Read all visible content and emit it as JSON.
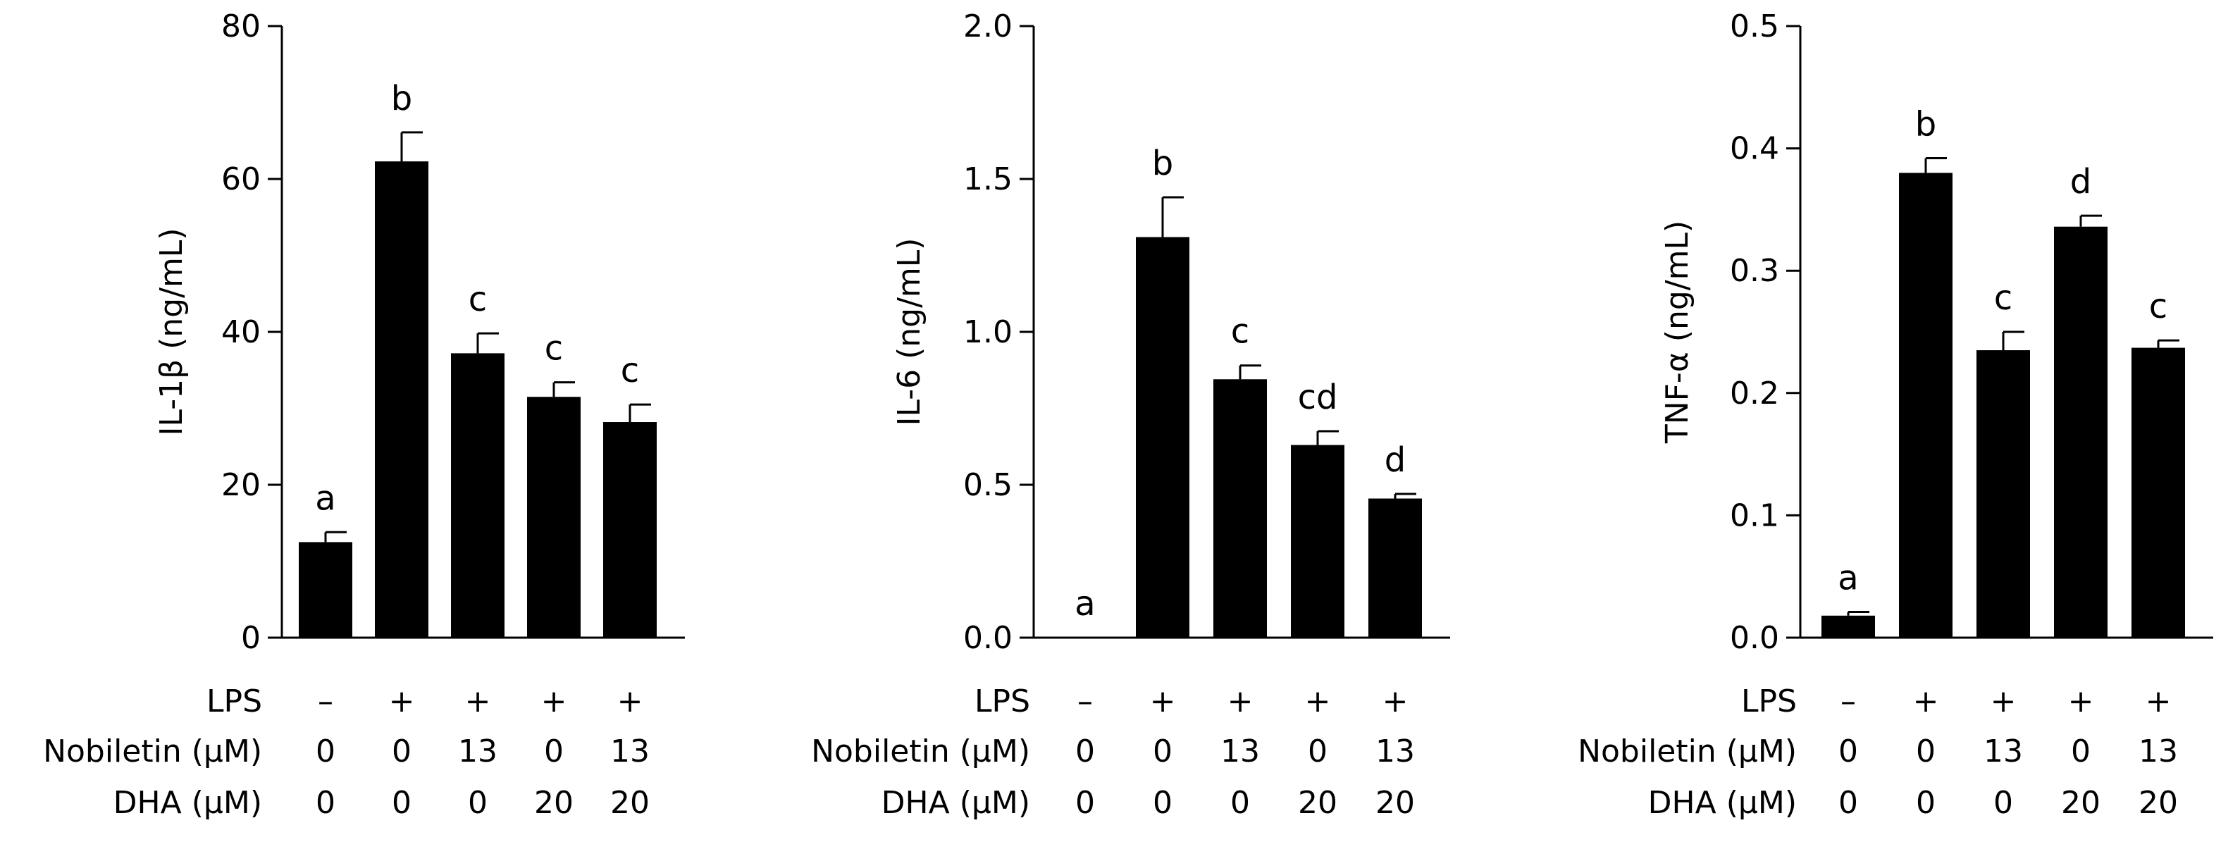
{
  "conditions": {
    "labels": [
      "LPS",
      "Nobiletin (μM)",
      "DHA (μM)"
    ],
    "rows": [
      [
        "–",
        "+",
        "+",
        "+",
        "+"
      ],
      [
        "0",
        "0",
        "13",
        "0",
        "13"
      ],
      [
        "0",
        "0",
        "0",
        "20",
        "20"
      ]
    ]
  },
  "chart_data": [
    {
      "type": "bar",
      "ylabel": "IL-1β (ng/mL)",
      "ylim": [
        0,
        80
      ],
      "yticks": [
        0,
        20,
        40,
        60,
        80
      ],
      "tick_labels": [
        "0",
        "20",
        "40",
        "60",
        "80"
      ],
      "groups": [
        "1",
        "2",
        "3",
        "4",
        "5"
      ],
      "values": [
        12.5,
        62.3,
        37.2,
        31.5,
        28.2
      ],
      "errors": [
        1.3,
        3.8,
        2.6,
        1.9,
        2.3
      ],
      "letters": [
        "a",
        "b",
        "c",
        "c",
        "c"
      ],
      "bar_color": "#000000"
    },
    {
      "type": "bar",
      "ylabel": "IL-6 (ng/mL)",
      "ylim": [
        0,
        2.0
      ],
      "yticks": [
        0,
        0.5,
        1.0,
        1.5,
        2.0
      ],
      "tick_labels": [
        "0.0",
        "0.5",
        "1.0",
        "1.5",
        "2.0"
      ],
      "groups": [
        "1",
        "2",
        "3",
        "4",
        "5"
      ],
      "values": [
        0.0,
        1.31,
        0.845,
        0.63,
        0.455
      ],
      "errors": [
        0.0,
        0.13,
        0.045,
        0.045,
        0.015
      ],
      "letters": [
        "a",
        "b",
        "c",
        "cd",
        "d"
      ],
      "bar_color": "#000000"
    },
    {
      "type": "bar",
      "ylabel": "TNF-α (ng/mL)",
      "ylim": [
        0,
        0.5
      ],
      "yticks": [
        0,
        0.1,
        0.2,
        0.3,
        0.4,
        0.5
      ],
      "tick_labels": [
        "0.0",
        "0.1",
        "0.2",
        "0.3",
        "0.4",
        "0.5"
      ],
      "groups": [
        "1",
        "2",
        "3",
        "4",
        "5"
      ],
      "values": [
        0.018,
        0.38,
        0.235,
        0.336,
        0.237
      ],
      "errors": [
        0.003,
        0.012,
        0.015,
        0.009,
        0.006
      ],
      "letters": [
        "a",
        "b",
        "c",
        "d",
        "c"
      ],
      "bar_color": "#000000"
    }
  ]
}
